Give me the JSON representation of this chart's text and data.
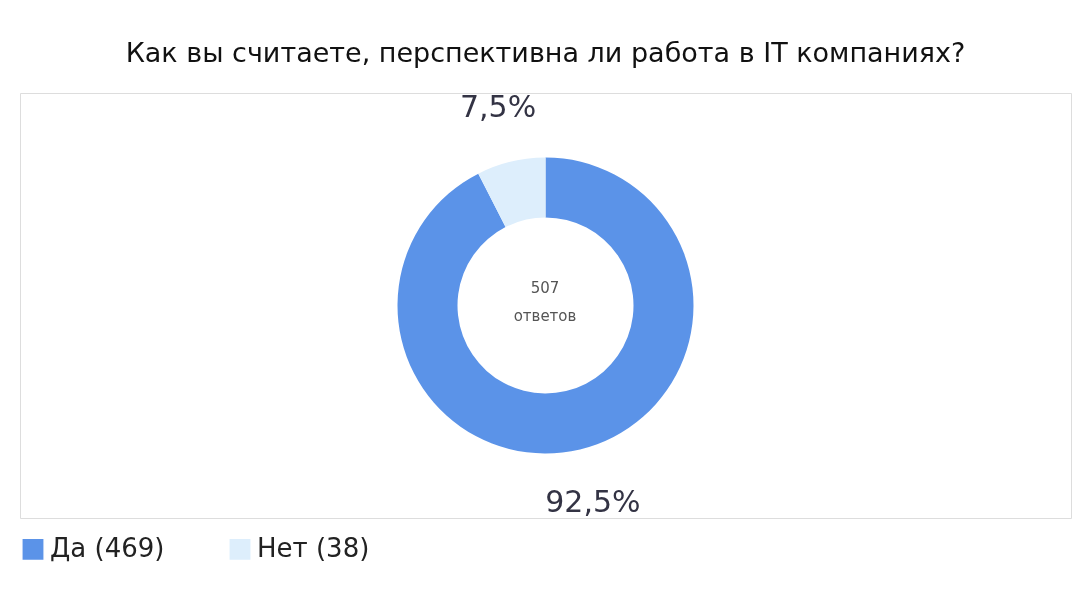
{
  "chart_data": {
    "type": "donut",
    "title": "Как вы считаете, перспективна ли работа в IT компаниях?",
    "categories": [
      "Да (469)",
      "Нет (38)"
    ],
    "values": [
      92.5,
      7.5
    ],
    "colors": [
      "#5b93e8",
      "#ddeefc"
    ],
    "value_labels": [
      "92,5%",
      "7,5%"
    ],
    "annotations": [
      "507 ответов"
    ],
    "legend": "bottom"
  }
}
